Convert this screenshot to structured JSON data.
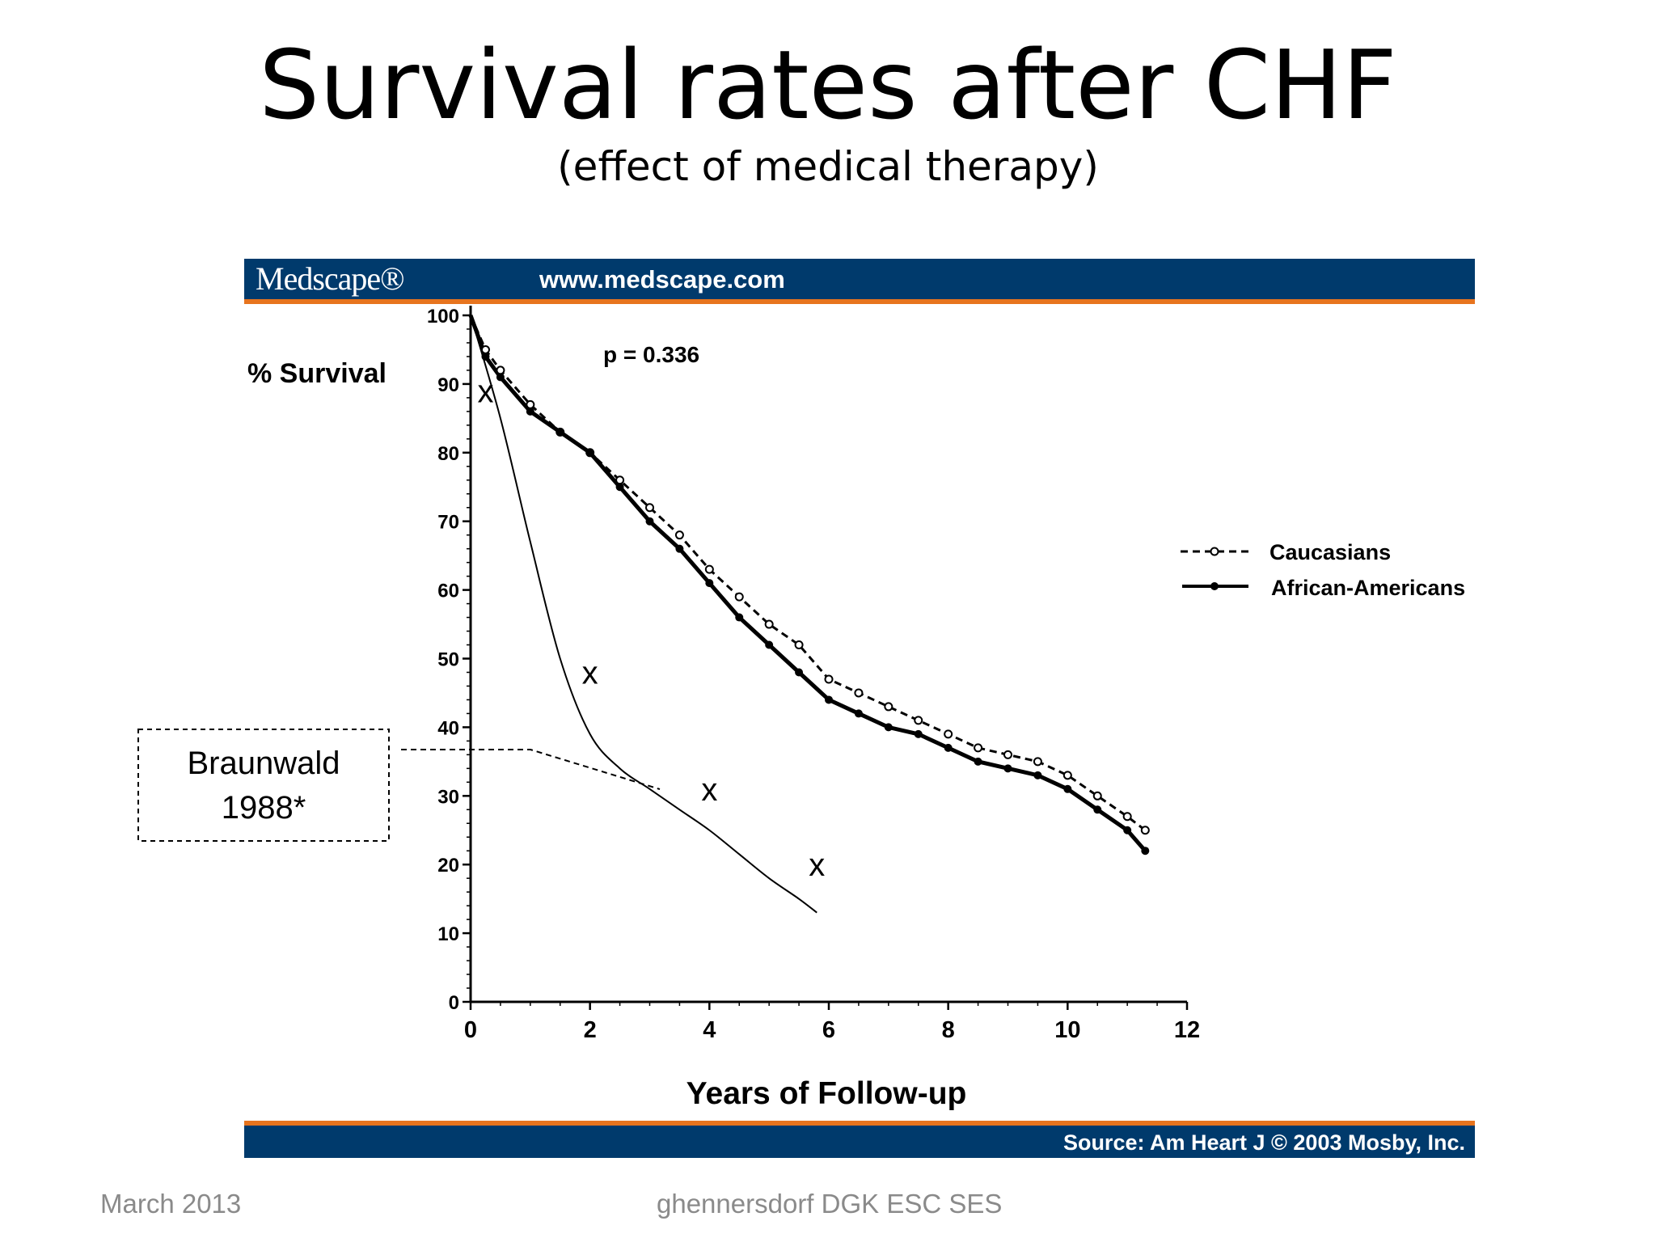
{
  "slide": {
    "title": "Survival rates after CHF",
    "subtitle": "(effect of medical therapy)",
    "footer_left": "March 2013",
    "footer_center": "ghennersdorf DGK ESC SES"
  },
  "banner": {
    "logo": "Medscape®",
    "url": "www.medscape.com",
    "source": "Source: Am Heart J © 2003 Mosby, Inc."
  },
  "annotation": {
    "box_line1": "Braunwald",
    "box_line2": "1988*",
    "marker": "x"
  },
  "colors": {
    "banner": "#003a6c",
    "accent": "#e7741e",
    "footer_text": "#8a8a8a"
  },
  "chart_data": {
    "type": "line",
    "xlabel": "Years of Follow-up",
    "ylabel": "% Survival",
    "xlim": [
      0,
      12
    ],
    "ylim": [
      0,
      100
    ],
    "xticks": [
      0,
      2,
      4,
      6,
      8,
      10,
      12
    ],
    "yticks": [
      0,
      10,
      20,
      30,
      40,
      50,
      60,
      70,
      80,
      90,
      100
    ],
    "annotation_text": "p = 0.336",
    "legend_placement": "right",
    "grid": false,
    "series": [
      {
        "name": "Caucasians",
        "style": "dashed-open-circle",
        "x": [
          0,
          0.25,
          0.5,
          1,
          1.5,
          2,
          2.5,
          3,
          3.5,
          4,
          4.5,
          5,
          5.5,
          6,
          6.5,
          7,
          7.5,
          8,
          8.5,
          9,
          9.5,
          10,
          10.5,
          11,
          11.3
        ],
        "y": [
          100,
          95,
          92,
          87,
          83,
          80,
          76,
          72,
          68,
          63,
          59,
          55,
          52,
          47,
          45,
          43,
          41,
          39,
          37,
          36,
          35,
          33,
          30,
          27,
          25
        ]
      },
      {
        "name": "African-Americans",
        "style": "solid-filled-circle",
        "x": [
          0,
          0.25,
          0.5,
          1,
          1.5,
          2,
          2.5,
          3,
          3.5,
          4,
          4.5,
          5,
          5.5,
          6,
          6.5,
          7,
          7.5,
          8,
          8.5,
          9,
          9.5,
          10,
          10.5,
          11,
          11.3
        ],
        "y": [
          100,
          94,
          91,
          86,
          83,
          80,
          75,
          70,
          66,
          61,
          56,
          52,
          48,
          44,
          42,
          40,
          39,
          37,
          35,
          34,
          33,
          31,
          28,
          25,
          22
        ]
      },
      {
        "name": "Braunwald 1988*",
        "style": "thin-solid",
        "x": [
          0,
          0.5,
          1,
          1.5,
          2,
          2.5,
          3,
          3.5,
          4,
          4.5,
          5,
          5.5,
          5.8
        ],
        "y": [
          100,
          85,
          67,
          50,
          39,
          34,
          31,
          28,
          25,
          21.5,
          18,
          15,
          13
        ]
      }
    ],
    "x_markers": [
      {
        "x": 0.25,
        "y": 89
      },
      {
        "x": 2,
        "y": 48
      },
      {
        "x": 4,
        "y": 31
      },
      {
        "x": 5.8,
        "y": 20
      }
    ]
  }
}
